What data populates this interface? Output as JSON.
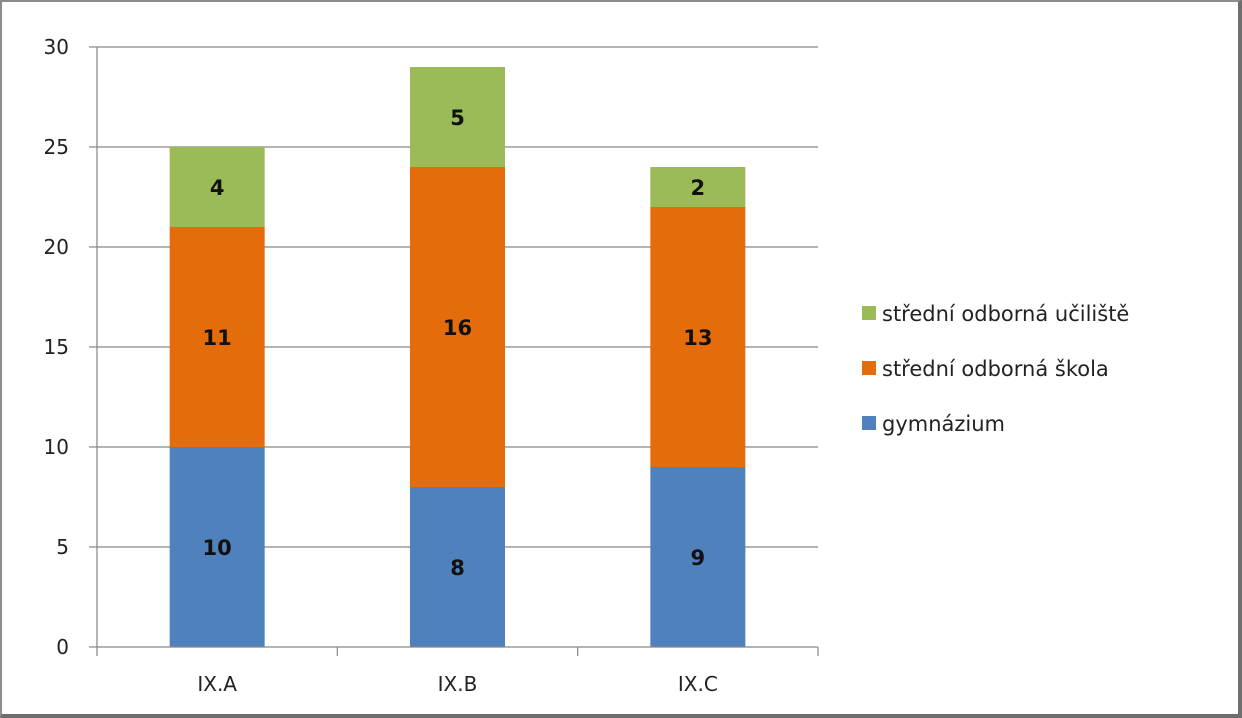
{
  "chart_data": {
    "type": "bar",
    "stacked": true,
    "categories": [
      "IX.A",
      "IX.B",
      "IX.C"
    ],
    "series": [
      {
        "name": "gymnázium",
        "values": [
          10,
          8,
          9
        ],
        "color": "#4f81bd"
      },
      {
        "name": "střední odborná škola",
        "values": [
          11,
          16,
          13
        ],
        "color": "#e46c0a"
      },
      {
        "name": "střední odborná učiliště",
        "values": [
          4,
          5,
          2
        ],
        "color": "#9bbb59"
      }
    ],
    "ylim": [
      0,
      30
    ],
    "yticks": [
      0,
      5,
      10,
      15,
      20,
      25,
      30
    ],
    "grid": true,
    "legend_position": "right",
    "legend_order": [
      "střední odborná učiliště",
      "střední odborná škola",
      "gymnázium"
    ],
    "title": "",
    "xlabel": "",
    "ylabel": ""
  }
}
